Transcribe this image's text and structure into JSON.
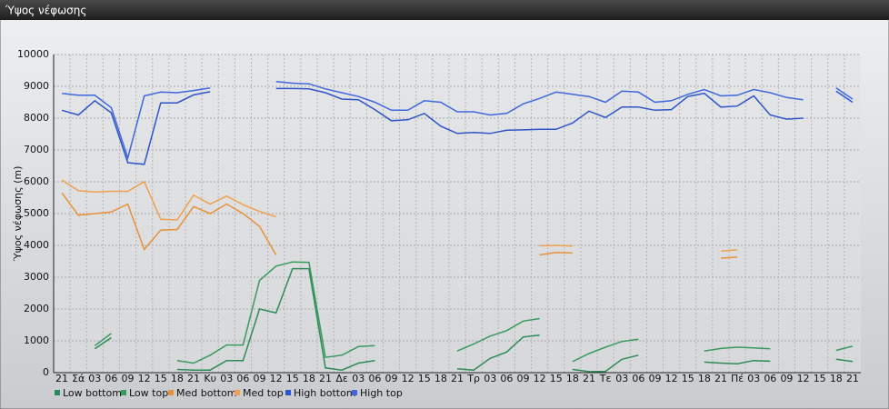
{
  "chart_data": {
    "type": "line",
    "title": "Ύψος νέφωσης",
    "y_label": "Ύψος νέφωσης (m)",
    "categories": [
      "21",
      "Σά",
      "03",
      "06",
      "09",
      "12",
      "15",
      "18",
      "21",
      "Κυ",
      "03",
      "06",
      "09",
      "12",
      "15",
      "18",
      "21",
      "Δε",
      "03",
      "06",
      "09",
      "12",
      "15",
      "18",
      "21",
      "Τρ",
      "03",
      "06",
      "09",
      "12",
      "15",
      "18",
      "21",
      "Τε",
      "03",
      "06",
      "09",
      "12",
      "15",
      "18",
      "21",
      "Πέ",
      "03",
      "06",
      "09",
      "12",
      "15",
      "18",
      "21"
    ],
    "ylim": [
      0,
      10000
    ],
    "yticks": [
      0,
      1000,
      2000,
      3000,
      4000,
      5000,
      6000,
      7000,
      8000,
      9000,
      10000
    ],
    "grid": true,
    "series": [
      {
        "name": "Low bottom",
        "color": "#2e8b57",
        "values": [
          null,
          null,
          750,
          1100,
          null,
          null,
          null,
          100,
          80,
          80,
          380,
          380,
          2000,
          1880,
          3270,
          3270,
          150,
          80,
          300,
          380,
          null,
          null,
          null,
          null,
          120,
          80,
          450,
          650,
          1120,
          1180,
          null,
          100,
          30,
          40,
          420,
          550,
          null,
          null,
          null,
          330,
          300,
          280,
          380,
          360,
          null,
          null,
          null,
          420,
          350
        ]
      },
      {
        "name": "Low top",
        "color": "#3a9a5e",
        "values": [
          null,
          null,
          850,
          1230,
          null,
          null,
          null,
          380,
          300,
          550,
          870,
          870,
          2900,
          3350,
          3480,
          3470,
          480,
          550,
          820,
          850,
          null,
          null,
          null,
          null,
          680,
          900,
          1150,
          1320,
          1620,
          1700,
          null,
          350,
          600,
          800,
          980,
          1050,
          null,
          null,
          null,
          680,
          760,
          800,
          780,
          750,
          null,
          null,
          null,
          700,
          830
        ]
      },
      {
        "name": "Med bottom",
        "color": "#e8913a",
        "values": [
          5650,
          4950,
          5000,
          5050,
          5300,
          3870,
          4480,
          4500,
          5220,
          5000,
          5300,
          5000,
          4600,
          3700,
          null,
          null,
          null,
          null,
          null,
          null,
          null,
          null,
          null,
          null,
          null,
          null,
          null,
          null,
          null,
          3700,
          3780,
          3760,
          null,
          null,
          null,
          null,
          null,
          null,
          null,
          null,
          3600,
          3630,
          null,
          null,
          null,
          null,
          null,
          null,
          null
        ]
      },
      {
        "name": "Med top",
        "color": "#f0a050",
        "values": [
          6050,
          5720,
          5680,
          5700,
          5700,
          6000,
          4820,
          4800,
          5580,
          5300,
          5550,
          5280,
          5070,
          4900,
          null,
          null,
          null,
          null,
          null,
          null,
          null,
          null,
          null,
          null,
          null,
          null,
          null,
          null,
          null,
          3990,
          4000,
          3980,
          null,
          null,
          null,
          null,
          null,
          null,
          null,
          null,
          3820,
          3860,
          null,
          null,
          null,
          null,
          null,
          null,
          null
        ]
      },
      {
        "name": "High bottom",
        "color": "#2f55c8",
        "values": [
          8250,
          8100,
          8550,
          8170,
          6600,
          6550,
          8480,
          8480,
          8730,
          8830,
          null,
          null,
          null,
          8930,
          8930,
          8920,
          8800,
          8600,
          8580,
          8270,
          7920,
          7950,
          8150,
          7750,
          7520,
          7550,
          7520,
          7620,
          7630,
          7650,
          7650,
          7850,
          8220,
          8020,
          8350,
          8350,
          8250,
          8270,
          8680,
          8780,
          8350,
          8380,
          8700,
          8100,
          7970,
          8000,
          null,
          8850,
          8500
        ]
      },
      {
        "name": "High top",
        "color": "#3f68dc",
        "values": [
          8780,
          8720,
          8720,
          8330,
          6750,
          8700,
          8820,
          8800,
          8870,
          8950,
          null,
          null,
          null,
          9150,
          9100,
          9080,
          8920,
          8800,
          8680,
          8500,
          8250,
          8250,
          8550,
          8500,
          8200,
          8200,
          8100,
          8150,
          8450,
          8620,
          8820,
          8750,
          8680,
          8500,
          8850,
          8820,
          8500,
          8550,
          8750,
          8900,
          8700,
          8720,
          8900,
          8800,
          8650,
          8580,
          null,
          8950,
          8600
        ]
      }
    ]
  }
}
